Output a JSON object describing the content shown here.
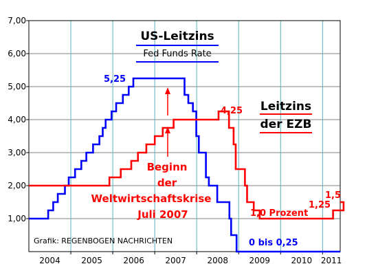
{
  "chart_data": {
    "type": "line",
    "xlabel": "",
    "ylabel": "",
    "xlim": [
      2004.0,
      2011.42
    ],
    "ylim": [
      0,
      7
    ],
    "x_ticks": [
      "2004",
      "2005",
      "2006",
      "2007",
      "2008",
      "2009",
      "2010",
      "2011"
    ],
    "y_ticks": [
      "7,00",
      "6,00",
      "5,00",
      "4,00",
      "3,00",
      "2,00",
      "1,00"
    ],
    "y_tick_values": [
      7,
      6,
      5,
      4,
      3,
      2,
      1
    ],
    "grid": true,
    "series": [
      {
        "name": "US-Leitzins",
        "color": "#0000ff",
        "x": [
          2004.0,
          2004.46,
          2004.58,
          2004.69,
          2004.86,
          2004.95,
          2005.1,
          2005.25,
          2005.37,
          2005.53,
          2005.68,
          2005.76,
          2005.83,
          2005.97,
          2006.08,
          2006.24,
          2006.38,
          2006.49,
          2007.71,
          2007.8,
          2007.91,
          2007.99,
          2008.05,
          2008.22,
          2008.29,
          2008.49,
          2008.78,
          2008.82,
          2008.95,
          2011.42
        ],
        "y": [
          1.0,
          1.25,
          1.5,
          1.75,
          2.0,
          2.25,
          2.5,
          2.75,
          3.0,
          3.25,
          3.5,
          3.75,
          4.0,
          4.25,
          4.5,
          4.75,
          5.0,
          5.25,
          4.75,
          4.5,
          4.25,
          3.5,
          3.0,
          2.25,
          2.0,
          1.5,
          1.0,
          0.5,
          0.0,
          0.0
        ]
      },
      {
        "name": "Leitzins der EZB",
        "color": "#ff0000",
        "x": [
          2004.0,
          2005.92,
          2006.19,
          2006.44,
          2006.6,
          2006.8,
          2007.0,
          2007.19,
          2007.45,
          2008.52,
          2008.77,
          2008.88,
          2008.93,
          2009.15,
          2009.2,
          2009.36,
          2009.5,
          2011.25,
          2011.5,
          2011.42
        ],
        "y": [
          2.0,
          2.25,
          2.5,
          2.75,
          3.0,
          3.25,
          3.5,
          3.75,
          4.0,
          4.25,
          3.75,
          3.25,
          2.5,
          2.0,
          1.5,
          1.25,
          1.0,
          1.25,
          1.5,
          1.5
        ]
      }
    ],
    "annotations": {
      "us_peak": "5,25",
      "ezb_peak": "4,25",
      "ezb_low": "1,0 Prozent",
      "us_low": "0 bis 0,25",
      "ezb_recent_1": "1,25",
      "ezb_recent_2": "1,5",
      "crisis_line1": "Beginn",
      "crisis_line2": "der",
      "crisis_line3": "Weltwirtschaftskrise",
      "crisis_line4": "Juli 2007"
    },
    "titles": {
      "us_title": "US-Leitzins",
      "us_subtitle": "Fed Funds Rate",
      "ezb_title_line1": "Leitzins",
      "ezb_title_line2": "der EZB"
    },
    "credit": "Grafik: REGENBOGEN NACHRICHTEN"
  }
}
